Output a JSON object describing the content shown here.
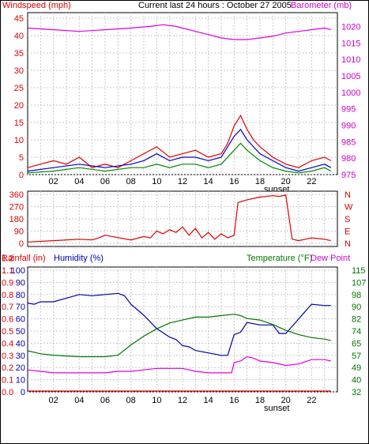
{
  "chart_data": [
    {
      "type": "line",
      "panel": "wind-barometer",
      "title": "Current last 24 hours : October 27 2005",
      "left_axis_label": "Windspeed (mph)",
      "right_axis_label": "Barometer (mb)",
      "left_ticks": [
        "0",
        "5",
        "10",
        "15",
        "20",
        "25",
        "30",
        "35",
        "40",
        "45"
      ],
      "right_ticks": [
        "975",
        "980",
        "985",
        "990",
        "995",
        "1000",
        "1005",
        "1010",
        "1015",
        "1020"
      ],
      "ylim_left": [
        0,
        45
      ],
      "ylim_right": [
        975,
        1022.5
      ],
      "x_ticks": [
        "02",
        "04",
        "06",
        "08",
        "10",
        "12",
        "14",
        "16",
        "18",
        "20",
        "22"
      ],
      "annotation": "sunset",
      "colors": {
        "windspeed": "#dd0000",
        "gust": "#0000cc",
        "average": "#008800",
        "barometer": "#dd00dd"
      },
      "series": [
        {
          "name": "Barometer",
          "x": [
            0,
            2,
            4,
            6,
            8,
            9.5,
            10.5,
            11.5,
            13,
            14,
            15,
            16,
            17,
            18,
            19,
            20,
            21,
            22,
            23,
            23.5
          ],
          "values": [
            1019.5,
            1019,
            1018.5,
            1019,
            1019.5,
            1020,
            1020.5,
            1020,
            1018.5,
            1017.5,
            1016.5,
            1016,
            1016,
            1016.5,
            1017,
            1018,
            1018.5,
            1019,
            1019.5,
            1019
          ]
        },
        {
          "name": "Windspeed",
          "x": [
            0,
            1,
            2,
            3,
            4,
            5,
            6,
            7,
            8,
            9,
            10,
            11,
            12,
            13,
            14,
            15,
            15.5,
            16,
            16.5,
            17,
            17.5,
            18,
            19,
            20,
            21,
            22,
            23,
            23.5
          ],
          "values": [
            2,
            3,
            4,
            3,
            5,
            2,
            3,
            2,
            4,
            6,
            8,
            5,
            6,
            7,
            5,
            6,
            9,
            14,
            17,
            13,
            10,
            8,
            5,
            3,
            2,
            4,
            5,
            4
          ]
        },
        {
          "name": "Gust",
          "x": [
            0,
            2,
            4,
            6,
            8,
            9,
            10,
            11,
            12,
            13,
            14,
            15,
            16,
            16.5,
            17,
            18,
            19,
            20,
            21,
            22,
            23,
            23.5
          ],
          "values": [
            1,
            2,
            3,
            2,
            3,
            4,
            6,
            4,
            5,
            5,
            4,
            5,
            11,
            13,
            10,
            6,
            4,
            2,
            1,
            2,
            3,
            2
          ]
        },
        {
          "name": "Average",
          "x": [
            0,
            2,
            4,
            6,
            8,
            9,
            10,
            11,
            12,
            13,
            14,
            15,
            16,
            16.5,
            17,
            18,
            19,
            20,
            21,
            22,
            23,
            23.5
          ],
          "values": [
            0.5,
            1,
            2,
            1,
            2,
            2,
            3,
            2,
            3,
            3,
            2,
            3,
            7,
            9,
            7,
            4,
            2,
            1,
            0.5,
            1,
            2,
            1
          ]
        }
      ]
    },
    {
      "type": "line",
      "panel": "wind-direction",
      "left_ticks": [
        "0",
        "90",
        "180",
        "270",
        "360"
      ],
      "right_ticks": [
        "N",
        "E",
        "S",
        "W",
        "N"
      ],
      "ylim": [
        0,
        360
      ],
      "x_ticks": [
        "02",
        "04",
        "06",
        "08",
        "10",
        "12",
        "14",
        "16",
        "18",
        "20",
        "22"
      ],
      "colors": {
        "direction": "#dd0000"
      },
      "series": [
        {
          "name": "Direction",
          "x": [
            0,
            2,
            4,
            5,
            5.5,
            6,
            8,
            9,
            9.5,
            10,
            10.5,
            11,
            11.5,
            12,
            12.5,
            13,
            13.5,
            14,
            14.5,
            15,
            15.5,
            16,
            16.3,
            17,
            18,
            19,
            19.5,
            20,
            20.5,
            21,
            22,
            23,
            23.5
          ],
          "values": [
            10,
            20,
            30,
            25,
            40,
            60,
            25,
            50,
            40,
            90,
            70,
            100,
            80,
            120,
            60,
            110,
            40,
            80,
            30,
            70,
            40,
            60,
            300,
            320,
            340,
            350,
            345,
            355,
            30,
            20,
            40,
            30,
            20
          ]
        }
      ]
    },
    {
      "type": "line",
      "panel": "rain-humidity-temp",
      "left_label_rain": "Rainfall (in)",
      "left_label_humidity": "Humidity (%)",
      "right_label_temp": "Temperature (°F)",
      "right_label_dew": "Dew Point",
      "rain_ticks": [
        "0.0",
        "0.1",
        "0.2",
        "0.3",
        "0.4",
        "0.5",
        "0.6",
        "0.7",
        "0.8",
        "0.9",
        "1.1",
        "1.2"
      ],
      "humidity_ticks": [
        "0",
        "10",
        "20",
        "30",
        "40",
        "50",
        "60",
        "70",
        "80",
        "90",
        "100"
      ],
      "temp_ticks": [
        "32",
        "40",
        "49",
        "57",
        "65",
        "74",
        "82",
        "90",
        "98",
        "107",
        "115"
      ],
      "ylim_humidity": [
        0,
        100
      ],
      "ylim_temp": [
        32,
        115
      ],
      "x_ticks": [
        "02",
        "04",
        "06",
        "08",
        "10",
        "12",
        "14",
        "16",
        "18",
        "20",
        "22"
      ],
      "annotation": "sunset",
      "colors": {
        "humidity": "#0000aa",
        "temperature": "#007700",
        "dewpoint": "#dd00dd",
        "rain": "#dd0000"
      },
      "series": [
        {
          "name": "Humidity",
          "x": [
            0,
            0.5,
            1,
            2,
            3,
            4,
            5,
            6,
            7,
            7.5,
            8,
            9,
            10,
            11,
            11.5,
            12,
            12.5,
            13,
            14,
            15,
            15.5,
            16,
            16.5,
            17,
            18,
            19,
            19.5,
            20,
            21,
            22,
            23,
            23.5
          ],
          "values": [
            73,
            72,
            74,
            74,
            77,
            80,
            79,
            80,
            81,
            79,
            72,
            63,
            52,
            45,
            43,
            38,
            37,
            34,
            32,
            30,
            30,
            47,
            49,
            57,
            55,
            55,
            48,
            48,
            60,
            72,
            71,
            71
          ]
        },
        {
          "name": "Temperature",
          "x": [
            0,
            1,
            2,
            4,
            6,
            7,
            8,
            9,
            10,
            11,
            12,
            13,
            14,
            15,
            16,
            16.5,
            17,
            18,
            19,
            20,
            21,
            22,
            23,
            23.5
          ],
          "values": [
            60,
            58,
            57,
            56,
            56,
            57,
            64,
            70,
            75,
            79,
            81,
            83,
            83,
            84,
            85,
            84,
            82,
            81,
            78,
            74,
            71,
            69,
            68,
            67
          ]
        },
        {
          "name": "Dew Point",
          "x": [
            0,
            1,
            2,
            3,
            4,
            5,
            6,
            7,
            8,
            9,
            10,
            11,
            12,
            13,
            14,
            15,
            15.8,
            16,
            16.5,
            17,
            17.5,
            18,
            19,
            20,
            21,
            22,
            23,
            23.5
          ],
          "values": [
            47,
            46,
            45,
            45,
            45,
            45,
            45,
            46,
            46,
            47,
            48,
            48,
            48,
            46,
            45,
            45,
            45,
            52,
            53,
            56,
            55,
            53,
            52,
            50,
            51,
            54,
            54,
            53
          ]
        },
        {
          "name": "Rainfall",
          "x": [
            0,
            23.5
          ],
          "values": [
            0,
            0
          ]
        }
      ]
    }
  ]
}
